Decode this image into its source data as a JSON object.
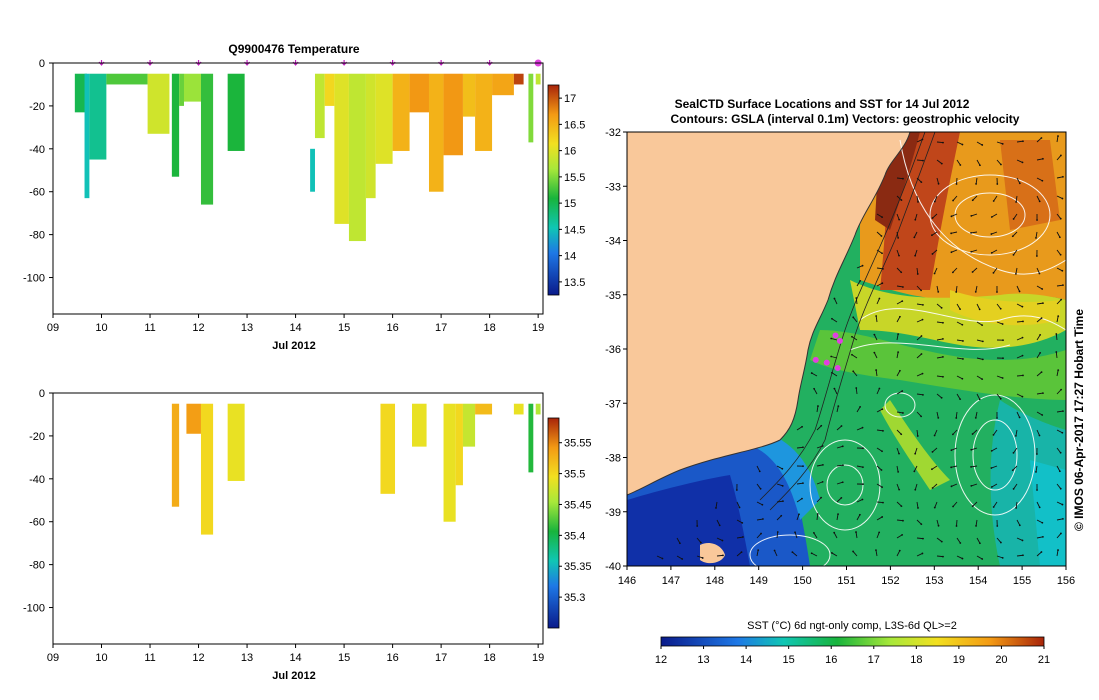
{
  "chart_data": [
    {
      "type": "heatmap",
      "title": "Q9900476  Temperature",
      "xlabel": "Jul 2012",
      "ylabel": "",
      "x_ticks": [
        "09",
        "10",
        "11",
        "12",
        "13",
        "14",
        "15",
        "16",
        "17",
        "18",
        "19"
      ],
      "y_ticks": [
        "0",
        "-20",
        "-40",
        "-60",
        "-80",
        "-100"
      ],
      "xlim": [
        9,
        19.1
      ],
      "ylim": [
        -117,
        0
      ],
      "colorbar": {
        "ticks": [
          "13.5",
          "14",
          "14.5",
          "15",
          "15.5",
          "16",
          "16.5",
          "17"
        ],
        "range": [
          13.25,
          17.25
        ]
      },
      "surface_markers": [
        10,
        11,
        12,
        13,
        14,
        15,
        16,
        17,
        18,
        19
      ],
      "profiles": [
        {
          "x0": 9.45,
          "x1": 9.7,
          "value": 15.0,
          "top": -5,
          "bottom": -23
        },
        {
          "x0": 9.65,
          "x1": 9.75,
          "value": 14.5,
          "top": -5,
          "bottom": -63
        },
        {
          "x0": 9.75,
          "x1": 10.1,
          "value": 14.7,
          "top": -5,
          "bottom": -45
        },
        {
          "x0": 10.1,
          "x1": 10.95,
          "value": 15.3,
          "top": -5,
          "bottom": -10
        },
        {
          "x0": 10.95,
          "x1": 11.4,
          "value": 15.9,
          "top": -5,
          "bottom": -33
        },
        {
          "x0": 11.45,
          "x1": 11.6,
          "value": 15.1,
          "top": -5,
          "bottom": -53
        },
        {
          "x0": 11.6,
          "x1": 11.7,
          "value": 15.4,
          "top": -5,
          "bottom": -20
        },
        {
          "x0": 11.7,
          "x1": 12.05,
          "value": 15.6,
          "top": -5,
          "bottom": -18
        },
        {
          "x0": 12.05,
          "x1": 12.3,
          "value": 15.2,
          "top": -5,
          "bottom": -66
        },
        {
          "x0": 12.6,
          "x1": 12.95,
          "value": 15.1,
          "top": -5,
          "bottom": -41
        },
        {
          "x0": 14.3,
          "x1": 14.4,
          "value": 14.5,
          "top": -40,
          "bottom": -60
        },
        {
          "x0": 14.4,
          "x1": 14.6,
          "value": 15.8,
          "top": -5,
          "bottom": -35
        },
        {
          "x0": 14.6,
          "x1": 14.8,
          "value": 16.2,
          "top": -5,
          "bottom": -20
        },
        {
          "x0": 14.8,
          "x1": 15.1,
          "value": 16.0,
          "top": -5,
          "bottom": -75
        },
        {
          "x0": 15.1,
          "x1": 15.45,
          "value": 15.8,
          "top": -5,
          "bottom": -83
        },
        {
          "x0": 15.45,
          "x1": 15.65,
          "value": 15.9,
          "top": -5,
          "bottom": -63
        },
        {
          "x0": 15.65,
          "x1": 16.0,
          "value": 16.0,
          "top": -5,
          "bottom": -47
        },
        {
          "x0": 16.0,
          "x1": 16.35,
          "value": 16.5,
          "top": -5,
          "bottom": -41
        },
        {
          "x0": 16.35,
          "x1": 16.75,
          "value": 16.7,
          "top": -5,
          "bottom": -23
        },
        {
          "x0": 16.75,
          "x1": 17.05,
          "value": 16.5,
          "top": -5,
          "bottom": -60
        },
        {
          "x0": 17.05,
          "x1": 17.45,
          "value": 16.7,
          "top": -5,
          "bottom": -43
        },
        {
          "x0": 17.45,
          "x1": 17.7,
          "value": 16.4,
          "top": -5,
          "bottom": -25
        },
        {
          "x0": 17.7,
          "x1": 18.05,
          "value": 16.5,
          "top": -5,
          "bottom": -41
        },
        {
          "x0": 18.05,
          "x1": 18.5,
          "value": 16.6,
          "top": -5,
          "bottom": -15
        },
        {
          "x0": 18.5,
          "x1": 18.7,
          "value": 17.1,
          "top": -5,
          "bottom": -10
        },
        {
          "x0": 18.8,
          "x1": 18.9,
          "value": 15.5,
          "top": -5,
          "bottom": -37
        },
        {
          "x0": 18.95,
          "x1": 19.05,
          "value": 15.8,
          "top": -5,
          "bottom": -10
        }
      ]
    },
    {
      "type": "heatmap",
      "title": "",
      "xlabel": "Jul 2012",
      "ylabel": "",
      "x_ticks": [
        "09",
        "10",
        "11",
        "12",
        "13",
        "14",
        "15",
        "16",
        "17",
        "18",
        "19"
      ],
      "y_ticks": [
        "0",
        "-20",
        "-40",
        "-60",
        "-80",
        "-100"
      ],
      "xlim": [
        9,
        19.1
      ],
      "ylim": [
        -117,
        0
      ],
      "colorbar": {
        "ticks": [
          "35.3",
          "35.35",
          "35.4",
          "35.45",
          "35.5",
          "35.55"
        ],
        "range": [
          35.25,
          35.59
        ]
      },
      "profiles": [
        {
          "x0": 11.45,
          "x1": 11.6,
          "value": 35.53,
          "top": -5,
          "bottom": -53
        },
        {
          "x0": 11.75,
          "x1": 12.05,
          "value": 35.54,
          "top": -5,
          "bottom": -19
        },
        {
          "x0": 12.05,
          "x1": 12.3,
          "value": 35.5,
          "top": -5,
          "bottom": -66
        },
        {
          "x0": 12.6,
          "x1": 12.95,
          "value": 35.49,
          "top": -5,
          "bottom": -41
        },
        {
          "x0": 15.75,
          "x1": 16.05,
          "value": 35.5,
          "top": -5,
          "bottom": -47
        },
        {
          "x0": 16.4,
          "x1": 16.7,
          "value": 35.49,
          "top": -5,
          "bottom": -25
        },
        {
          "x0": 17.05,
          "x1": 17.3,
          "value": 35.49,
          "top": -5,
          "bottom": -60
        },
        {
          "x0": 17.3,
          "x1": 17.45,
          "value": 35.5,
          "top": -5,
          "bottom": -43
        },
        {
          "x0": 17.45,
          "x1": 17.7,
          "value": 35.47,
          "top": -5,
          "bottom": -25
        },
        {
          "x0": 17.7,
          "x1": 18.05,
          "value": 35.52,
          "top": -5,
          "bottom": -10
        },
        {
          "x0": 18.5,
          "x1": 18.7,
          "value": 35.49,
          "top": -5,
          "bottom": -10
        },
        {
          "x0": 18.8,
          "x1": 18.9,
          "value": 35.41,
          "top": -5,
          "bottom": -37
        },
        {
          "x0": 18.95,
          "x1": 19.05,
          "value": 35.46,
          "top": -5,
          "bottom": -10
        }
      ]
    },
    {
      "type": "heatmap",
      "title": "SealCTD Surface Locations and SST for 14 Jul 2012",
      "subtitle": "Contours: GSLA (interval 0.1m) Vectors: geostrophic velocity",
      "xlabel": "",
      "ylabel": "",
      "x_ticks": [
        "146",
        "147",
        "148",
        "149",
        "150",
        "151",
        "152",
        "153",
        "154",
        "155",
        "156"
      ],
      "y_ticks": [
        "-32",
        "-33",
        "-34",
        "-35",
        "-36",
        "-37",
        "-38",
        "-39",
        "-40"
      ],
      "xlim": [
        146,
        156
      ],
      "ylim": [
        -40,
        -32
      ],
      "colorbar_label": "SST (°C) 6d ngt-only comp, L3S-6d QL>=2",
      "colorbar": {
        "ticks": [
          "12",
          "13",
          "14",
          "15",
          "16",
          "17",
          "18",
          "19",
          "20",
          "21"
        ],
        "range": [
          12,
          21
        ]
      },
      "credit": "© IMOS 06-Apr-2017 17:27 Hobart Time",
      "seal_locations": [
        {
          "lon": 150.75,
          "lat": -35.75
        },
        {
          "lon": 150.85,
          "lat": -35.85
        },
        {
          "lon": 150.3,
          "lat": -36.2
        },
        {
          "lon": 150.55,
          "lat": -36.25
        },
        {
          "lon": 150.8,
          "lat": -36.35
        }
      ]
    }
  ]
}
